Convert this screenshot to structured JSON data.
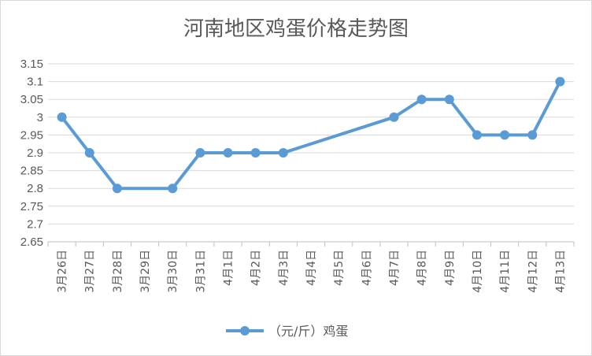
{
  "chart_data": {
    "type": "line",
    "title": "河南地区鸡蛋价格走势图",
    "xlabel": "",
    "ylabel": "",
    "categories": [
      "3月26日",
      "3月27日",
      "3月28日",
      "3月29日",
      "3月30日",
      "3月31日",
      "4月1日",
      "4月2日",
      "4月3日",
      "4月4日",
      "4月5日",
      "4月6日",
      "4月7日",
      "4月8日",
      "4月9日",
      "4月10日",
      "4月11日",
      "4月12日",
      "4月13日"
    ],
    "series": [
      {
        "name": "（元/斤）鸡蛋",
        "values": [
          3.0,
          2.9,
          2.8,
          null,
          2.8,
          2.9,
          2.9,
          2.9,
          2.9,
          null,
          null,
          null,
          3.0,
          3.05,
          3.05,
          2.95,
          2.95,
          2.95,
          3.1
        ]
      }
    ],
    "yticks": [
      "2.65",
      "2.7",
      "2.75",
      "2.8",
      "2.85",
      "2.9",
      "2.95",
      "3",
      "3.05",
      "3.1",
      "3.15"
    ],
    "ylim": [
      2.65,
      3.15
    ],
    "grid": "horizontal",
    "legend_position": "bottom",
    "colors": {
      "series": "#5b9bd5",
      "grid": "#d9d9d9",
      "axis": "#bfbfbf",
      "text": "#595959"
    }
  }
}
